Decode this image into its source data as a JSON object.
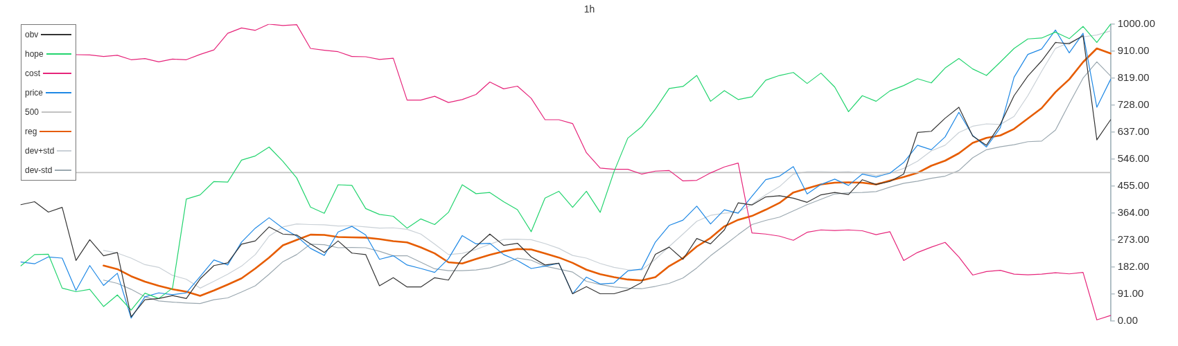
{
  "chart_data": {
    "type": "line",
    "title": "1h",
    "categories": [
      null,
      null,
      null,
      null,
      null,
      null,
      null,
      null,
      null,
      null,
      null,
      null,
      null,
      null,
      null,
      null,
      null,
      null,
      null,
      null,
      null,
      null,
      null,
      null,
      null,
      null,
      null,
      null,
      null,
      null,
      null,
      null,
      null,
      null,
      null,
      null,
      null,
      null,
      null,
      null,
      null,
      null,
      null,
      null,
      null,
      null,
      null,
      null,
      null,
      null,
      null,
      null,
      null,
      null,
      null,
      null,
      null,
      null,
      null,
      null,
      null,
      null,
      null,
      null,
      null,
      null,
      null,
      null,
      null,
      null,
      null,
      null,
      null,
      null,
      null,
      null,
      null,
      null,
      null,
      null
    ],
    "ylim": [
      0,
      1000
    ],
    "yticks": [
      {
        "value": 0,
        "label": "0.00"
      },
      {
        "value": 91,
        "label": "91.00"
      },
      {
        "value": 182,
        "label": "182.00"
      },
      {
        "value": 273,
        "label": "273.00"
      },
      {
        "value": 364,
        "label": "364.00"
      },
      {
        "value": 455,
        "label": "455.00"
      },
      {
        "value": 546,
        "label": "546.00"
      },
      {
        "value": 637,
        "label": "637.00"
      },
      {
        "value": 728,
        "label": "728.00"
      },
      {
        "value": 819,
        "label": "819.00"
      },
      {
        "value": 910,
        "label": "910.00"
      },
      {
        "value": 1000,
        "label": "1000.00"
      }
    ],
    "tick_labels": "y",
    "legend": "top left",
    "series": [
      {
        "name": "obv",
        "color": "#333333",
        "values": [
          392,
          402,
          367,
          383,
          204,
          274,
          220,
          231,
          14,
          72,
          76,
          86,
          76,
          142,
          187,
          196,
          259,
          270,
          317,
          293,
          290,
          260,
          231,
          270,
          229,
          224,
          119,
          146,
          115,
          115,
          146,
          138,
          212,
          251,
          293,
          255,
          262,
          216,
          189,
          195,
          92,
          116,
          92,
          92,
          105,
          130,
          225,
          249,
          208,
          278,
          260,
          307,
          398,
          391,
          418,
          422,
          414,
          400,
          425,
          433,
          426,
          476,
          460,
          470,
          495,
          635,
          639,
          683,
          720,
          623,
          592,
          662,
          759,
          825,
          876,
          938,
          934,
          961,
          610,
          678
        ]
      },
      {
        "name": "hope",
        "color": "#22d46e",
        "values": [
          186,
          224,
          225,
          111,
          99,
          107,
          49,
          88,
          37,
          94,
          76,
          111,
          411,
          425,
          470,
          468,
          542,
          556,
          586,
          538,
          482,
          384,
          363,
          459,
          457,
          379,
          359,
          353,
          313,
          344,
          325,
          366,
          459,
          429,
          433,
          402,
          375,
          301,
          414,
          437,
          383,
          437,
          366,
          503,
          616,
          654,
          714,
          783,
          790,
          827,
          740,
          776,
          746,
          755,
          811,
          827,
          837,
          800,
          835,
          788,
          705,
          759,
          740,
          775,
          793,
          816,
          802,
          852,
          884,
          849,
          827,
          872,
          918,
          950,
          953,
          973,
          951,
          992,
          938,
          1000
        ]
      },
      {
        "name": "cost",
        "color": "#e6247a",
        "values": [
          null,
          null,
          null,
          null,
          897,
          896,
          891,
          895,
          880,
          884,
          873,
          882,
          880,
          898,
          913,
          969,
          987,
          979,
          1000,
          995,
          998,
          918,
          912,
          907,
          891,
          890,
          881,
          885,
          744,
          744,
          757,
          736,
          746,
          763,
          805,
          782,
          791,
          750,
          678,
          678,
          665,
          567,
          515,
          511,
          511,
          495,
          505,
          507,
          472,
          474,
          499,
          519,
          532,
          297,
          293,
          286,
          272,
          299,
          307,
          305,
          307,
          304,
          291,
          301,
          204,
          231,
          249,
          265,
          216,
          155,
          167,
          171,
          158,
          156,
          158,
          163,
          159,
          164,
          4,
          19
        ]
      },
      {
        "name": "price",
        "color": "#1e88e5",
        "values": [
          199,
          193,
          216,
          212,
          103,
          187,
          120,
          161,
          10,
          82,
          95,
          89,
          95,
          150,
          206,
          189,
          266,
          313,
          348,
          313,
          286,
          245,
          221,
          300,
          319,
          290,
          208,
          220,
          189,
          177,
          164,
          210,
          288,
          260,
          262,
          224,
          204,
          177,
          185,
          195,
          92,
          148,
          125,
          128,
          169,
          175,
          266,
          322,
          340,
          387,
          327,
          375,
          363,
          420,
          476,
          488,
          520,
          428,
          460,
          478,
          457,
          495,
          485,
          498,
          534,
          592,
          577,
          620,
          703,
          625,
          586,
          651,
          821,
          898,
          916,
          980,
          903,
          969,
          720,
          814
        ]
      },
      {
        "name": "500",
        "color": "#c2c2c2",
        "values": [
          null,
          null,
          null,
          null,
          500,
          500,
          500,
          500,
          500,
          500,
          500,
          500,
          500,
          500,
          500,
          500,
          500,
          500,
          500,
          500,
          500,
          500,
          500,
          500,
          500,
          500,
          500,
          500,
          500,
          500,
          500,
          500,
          500,
          500,
          500,
          500,
          500,
          500,
          500,
          500,
          500,
          500,
          500,
          500,
          500,
          500,
          500,
          500,
          500,
          500,
          500,
          500,
          500,
          500,
          500,
          500,
          500,
          500,
          500,
          500,
          500,
          500,
          500,
          500,
          500,
          500,
          500,
          500,
          500,
          500,
          500,
          500,
          500,
          500,
          500,
          500,
          500,
          500,
          500,
          500
        ]
      },
      {
        "name": "reg",
        "color": "#e65c00",
        "values": [
          null,
          null,
          null,
          null,
          null,
          null,
          187,
          175,
          151,
          133,
          119,
          107,
          99,
          85,
          103,
          123,
          144,
          177,
          214,
          255,
          273,
          291,
          290,
          283,
          282,
          281,
          276,
          269,
          265,
          248,
          228,
          198,
          194,
          209,
          223,
          235,
          243,
          241,
          228,
          214,
          196,
          173,
          158,
          148,
          140,
          137,
          148,
          185,
          212,
          251,
          280,
          319,
          341,
          354,
          375,
          398,
          433,
          447,
          460,
          466,
          467,
          466,
          460,
          473,
          485,
          499,
          523,
          540,
          565,
          600,
          617,
          625,
          647,
          682,
          717,
          771,
          814,
          872,
          918,
          901
        ]
      },
      {
        "name": "dev+std",
        "color": "#c9d0d6",
        "values": [
          null,
          null,
          null,
          null,
          null,
          null,
          238,
          229,
          212,
          190,
          181,
          154,
          141,
          111,
          134,
          158,
          185,
          224,
          286,
          317,
          327,
          325,
          324,
          320,
          321,
          317,
          313,
          314,
          309,
          293,
          259,
          224,
          228,
          241,
          259,
          275,
          276,
          274,
          261,
          245,
          221,
          212,
          194,
          181,
          173,
          172,
          208,
          251,
          293,
          336,
          356,
          363,
          367,
          394,
          425,
          453,
          495,
          503,
          503,
          502,
          503,
          499,
          490,
          498,
          514,
          538,
          573,
          592,
          635,
          656,
          664,
          662,
          689,
          759,
          841,
          918,
          938,
          957,
          963,
          977
        ]
      },
      {
        "name": "dev-std",
        "color": "#9ba8b0",
        "values": [
          null,
          null,
          null,
          null,
          null,
          null,
          138,
          127,
          107,
          82,
          68,
          64,
          61,
          59,
          72,
          78,
          98,
          119,
          158,
          200,
          224,
          259,
          257,
          247,
          248,
          247,
          235,
          220,
          220,
          198,
          176,
          170,
          170,
          172,
          179,
          193,
          212,
          205,
          185,
          175,
          165,
          134,
          123,
          115,
          111,
          109,
          117,
          127,
          145,
          179,
          220,
          255,
          291,
          325,
          339,
          350,
          371,
          392,
          410,
          428,
          432,
          433,
          436,
          451,
          464,
          471,
          481,
          488,
          507,
          550,
          577,
          587,
          594,
          604,
          606,
          643,
          732,
          818,
          873,
          825
        ]
      }
    ]
  }
}
